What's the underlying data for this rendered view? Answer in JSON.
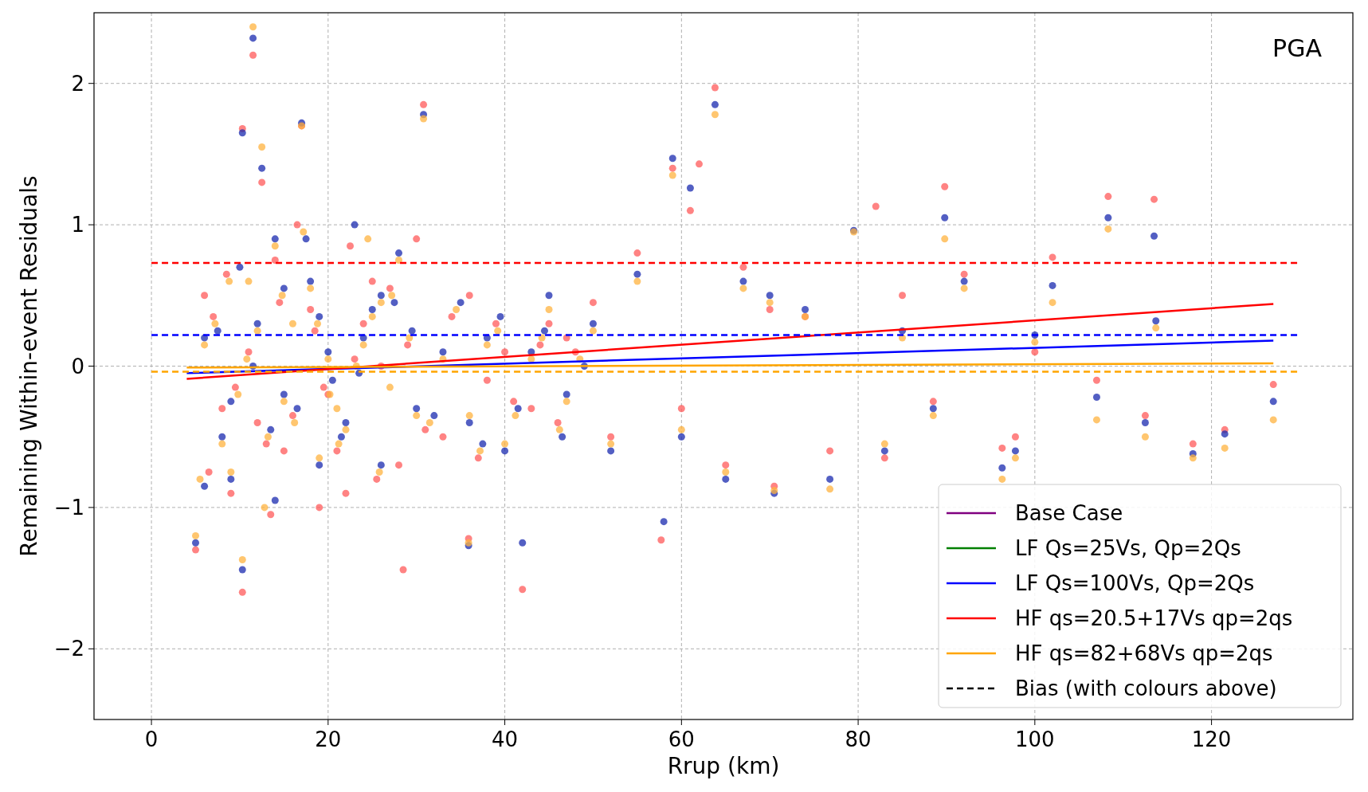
{
  "chart_data": {
    "type": "scatter",
    "xlabel": "Rrup (km)",
    "ylabel": "Remaining Within-event Residuals",
    "annotations": [
      "PGA"
    ],
    "xlim": [
      -6.5,
      136
    ],
    "ylim": [
      -2.5,
      2.5
    ],
    "xticks": [
      0,
      20,
      40,
      60,
      80,
      100,
      120
    ],
    "yticks": [
      -2,
      -1,
      0,
      1,
      2
    ],
    "grid": true,
    "legend": "bottom right",
    "series": [
      {
        "marker": "circle",
        "color": "#ff5a5a",
        "x": [
          7,
          9.5,
          11,
          13,
          14.5,
          16,
          18.5,
          21,
          23,
          25.5,
          27,
          29,
          31,
          34,
          37,
          39,
          41,
          44,
          46,
          48,
          6.5,
          8.5,
          13.5,
          16.5,
          19.5,
          22.5,
          11.5,
          63.8,
          30.8,
          89.8,
          108.3,
          113.5,
          10.3,
          42,
          28.5,
          82,
          62,
          57.7,
          117.9,
          127,
          10.3,
          17,
          12.5,
          59,
          61,
          67,
          70,
          50,
          55,
          45,
          38,
          25,
          20,
          15,
          22,
          8,
          5,
          35.9,
          60,
          65,
          70.5,
          76.8,
          83,
          96.3,
          97.8,
          100,
          102,
          107,
          112.5,
          121.5,
          92,
          85,
          74,
          88.5,
          52,
          47,
          30,
          18,
          12,
          6,
          28,
          40,
          33,
          14,
          9,
          24,
          19,
          26,
          36,
          43
        ],
        "values": [
          0.35,
          -0.15,
          0.1,
          -0.55,
          0.45,
          -0.35,
          0.25,
          -0.6,
          0.05,
          -0.8,
          0.55,
          0.15,
          -0.45,
          0.35,
          -0.65,
          0.3,
          -0.25,
          0.15,
          -0.4,
          0.1,
          -0.75,
          0.65,
          -1.05,
          1.0,
          -0.15,
          0.85,
          2.2,
          1.97,
          1.85,
          1.27,
          1.2,
          1.18,
          -1.6,
          -1.58,
          -1.44,
          1.13,
          1.43,
          -1.23,
          -0.55,
          -0.13,
          1.68,
          1.7,
          1.3,
          1.4,
          1.1,
          0.7,
          0.4,
          0.45,
          0.8,
          0.3,
          -0.1,
          0.6,
          -0.2,
          -0.6,
          -0.9,
          -0.3,
          -1.3,
          -1.22,
          -0.3,
          -0.7,
          -0.85,
          -0.6,
          -0.65,
          -0.58,
          -0.5,
          0.1,
          0.77,
          -0.1,
          -0.35,
          -0.45,
          0.65,
          0.5,
          0.35,
          -0.25,
          -0.5,
          0.2,
          0.9,
          0.4,
          -0.4,
          0.5,
          -0.7,
          0.1,
          -0.5,
          0.75,
          -0.9,
          0.3,
          -1.0,
          0.0,
          0.5,
          -0.3
        ]
      },
      {
        "marker": "circle",
        "color": "#1a2ab0",
        "x": [
          7.5,
          9,
          11.5,
          13.5,
          15,
          16.5,
          19,
          21.5,
          23.5,
          26,
          27.5,
          29.5,
          32,
          35,
          37.5,
          39.5,
          41.5,
          44.5,
          46.5,
          49,
          6,
          10,
          14,
          17.5,
          20.5,
          23,
          11.5,
          10.3,
          12.5,
          17,
          30.8,
          63.8,
          59,
          61,
          89.8,
          108.3,
          113.5,
          79.5,
          67,
          70,
          50,
          55,
          45,
          38,
          25,
          20,
          15,
          22,
          8,
          10.3,
          5,
          35.9,
          42,
          60,
          58,
          65,
          70.5,
          76.8,
          83,
          96.3,
          97.8,
          100,
          102,
          107,
          112.5,
          117.9,
          121.5,
          127,
          113.7,
          92,
          85,
          74,
          88.5,
          52,
          47,
          30,
          18,
          12,
          6,
          28,
          40,
          33,
          14,
          9,
          24,
          19,
          26,
          36,
          43
        ],
        "values": [
          0.25,
          -0.25,
          0.0,
          -0.45,
          0.55,
          -0.3,
          0.35,
          -0.5,
          -0.05,
          -0.7,
          0.45,
          0.25,
          -0.35,
          0.45,
          -0.55,
          0.35,
          -0.3,
          0.25,
          -0.5,
          0.0,
          -0.85,
          0.7,
          -0.95,
          0.9,
          -0.1,
          1.0,
          2.32,
          1.65,
          1.4,
          1.72,
          1.78,
          1.85,
          1.47,
          1.26,
          1.05,
          1.05,
          0.92,
          0.96,
          0.6,
          0.5,
          0.3,
          0.65,
          0.5,
          0.2,
          0.4,
          0.1,
          -0.2,
          -0.4,
          -0.5,
          -1.44,
          -1.25,
          -1.27,
          -1.25,
          -0.5,
          -1.1,
          -0.8,
          -0.9,
          -0.8,
          -0.6,
          -0.72,
          -0.6,
          0.22,
          0.57,
          -0.22,
          -0.4,
          -0.62,
          -0.48,
          -0.25,
          0.32,
          0.6,
          0.25,
          0.4,
          -0.3,
          -0.6,
          -0.2,
          -0.3,
          0.6,
          0.3,
          0.2,
          0.8,
          -0.6,
          0.1,
          0.9,
          -0.8,
          0.2,
          -0.7,
          0.5,
          -0.4,
          0.1
        ]
      },
      {
        "marker": "circle",
        "color": "#ffb340",
        "x": [
          7.2,
          9.8,
          10.8,
          13.2,
          14.8,
          16.2,
          18.8,
          21.2,
          23.2,
          25.8,
          27.2,
          29.2,
          31.5,
          34.5,
          37.2,
          39.2,
          41.2,
          44.2,
          46.2,
          48.5,
          5.5,
          8.8,
          12.8,
          17.2,
          20.2,
          24.5,
          11.5,
          63.8,
          108.3,
          96.3,
          127,
          121.5,
          107,
          10.3,
          17,
          30.8,
          12.5,
          59,
          79.5,
          89.8,
          67,
          70,
          50,
          55,
          45,
          38,
          25,
          20,
          15,
          22,
          8,
          5,
          35.9,
          60,
          65,
          70.5,
          76.8,
          83,
          97.8,
          100,
          102,
          112.5,
          117.9,
          113.7,
          92,
          85,
          74,
          88.5,
          52,
          47,
          30,
          18,
          12,
          6,
          28,
          40,
          33,
          14,
          9,
          24,
          19,
          26,
          36,
          43,
          16,
          21,
          11,
          27
        ],
        "values": [
          0.3,
          -0.2,
          0.05,
          -0.5,
          0.5,
          -0.4,
          0.3,
          -0.55,
          0.0,
          -0.75,
          0.5,
          0.2,
          -0.4,
          0.4,
          -0.6,
          0.25,
          -0.35,
          0.2,
          -0.45,
          0.05,
          -0.8,
          0.6,
          -1.0,
          0.95,
          -0.2,
          0.9,
          2.4,
          1.78,
          0.97,
          -0.8,
          -0.38,
          -0.58,
          -0.38,
          -1.37,
          1.7,
          1.75,
          1.55,
          1.35,
          0.95,
          0.9,
          0.55,
          0.45,
          0.25,
          0.6,
          0.4,
          0.15,
          0.35,
          0.05,
          -0.25,
          -0.45,
          -0.55,
          -1.2,
          -1.25,
          -0.45,
          -0.75,
          -0.88,
          -0.87,
          -0.55,
          -0.65,
          0.17,
          0.45,
          -0.5,
          -0.65,
          0.27,
          0.55,
          0.2,
          0.35,
          -0.35,
          -0.55,
          -0.25,
          -0.35,
          0.55,
          0.25,
          0.15,
          0.75,
          -0.55,
          0.05,
          0.85,
          -0.75,
          0.15,
          -0.65,
          0.45,
          -0.35,
          0.05,
          0.3,
          -0.3,
          0.6,
          -0.15
        ]
      },
      {
        "type": "line",
        "name": "Base Case",
        "color": "#800080"
      },
      {
        "type": "line",
        "name": "LF Qs=25Vs, Qp=2Qs",
        "color": "#008000"
      },
      {
        "type": "line",
        "name": "LF Qs=100Vs, Qp=2Qs",
        "color": "#0000ff",
        "x": [
          4,
          127
        ],
        "values": [
          -0.05,
          0.18
        ]
      },
      {
        "type": "line",
        "name": "HF qs=20.5+17Vs qp=2qs",
        "color": "#ff0000",
        "x": [
          4,
          127
        ],
        "values": [
          -0.09,
          0.44
        ]
      },
      {
        "type": "line",
        "name": "HF qs=82+68Vs qp=2qs",
        "color": "#ffa500",
        "x": [
          4,
          127
        ],
        "values": [
          -0.01,
          0.02
        ]
      },
      {
        "type": "line",
        "name": "Bias (with colours above)",
        "color": "#000000",
        "line_style": "dashed"
      },
      {
        "type": "line",
        "color": "#ff0000",
        "line_style": "dashed",
        "x": [
          0,
          130
        ],
        "values": [
          0.73,
          0.73
        ]
      },
      {
        "type": "line",
        "color": "#0000ff",
        "line_style": "dashed",
        "x": [
          0,
          130
        ],
        "values": [
          0.22,
          0.22
        ]
      },
      {
        "type": "line",
        "color": "#ffa500",
        "line_style": "dashed",
        "x": [
          0,
          130
        ],
        "values": [
          -0.04,
          -0.04
        ]
      }
    ]
  }
}
